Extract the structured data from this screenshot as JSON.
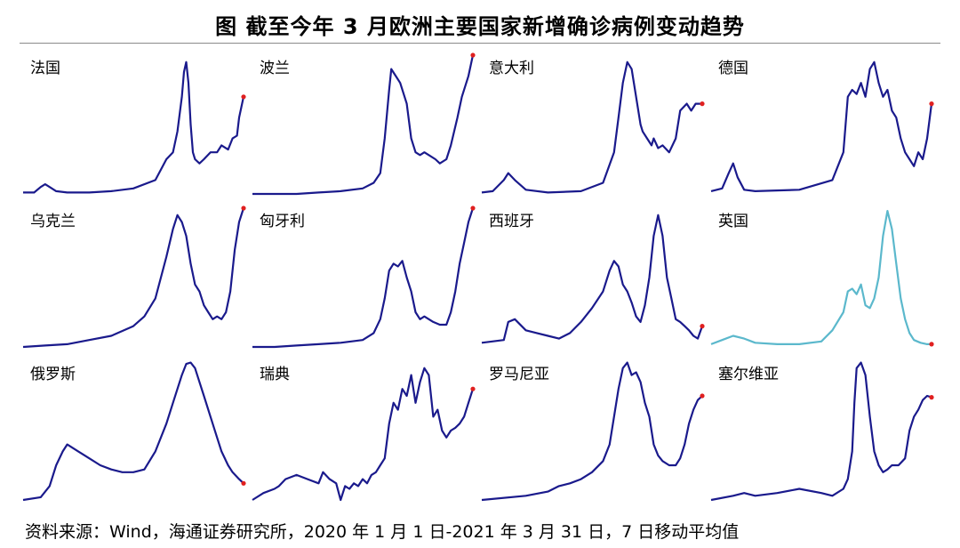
{
  "title": "图  截至今年 3 月欧洲主要国家新增确诊病例变动趋势",
  "source": "资料来源：Wind，海通证券研究所，2020 年 1 月 1 日-2021 年 3 月 31 日，7 日移动平均值",
  "colors": {
    "line": "#1a1a8c",
    "highlight": "#5bb8cc",
    "endpoint": "#e02020"
  },
  "chart_data": [
    {
      "type": "line",
      "label": "法国",
      "xlim": [
        0,
        100
      ],
      "ylim": [
        0,
        100
      ],
      "x": [
        0,
        5,
        8,
        10,
        12,
        15,
        20,
        30,
        40,
        50,
        60,
        65,
        68,
        70,
        72,
        73,
        74,
        75,
        76,
        77,
        78,
        80,
        82,
        85,
        88,
        90,
        93,
        95,
        97,
        98,
        100
      ],
      "y": [
        1,
        1,
        5,
        7,
        5,
        2,
        1,
        1,
        2,
        4,
        10,
        25,
        30,
        45,
        70,
        88,
        95,
        80,
        50,
        30,
        25,
        22,
        25,
        30,
        30,
        35,
        32,
        40,
        42,
        55,
        70
      ]
    },
    {
      "type": "line",
      "label": "波兰",
      "xlim": [
        0,
        100
      ],
      "ylim": [
        0,
        100
      ],
      "x": [
        0,
        20,
        30,
        40,
        50,
        55,
        58,
        60,
        62,
        63,
        65,
        67,
        70,
        72,
        74,
        76,
        78,
        80,
        83,
        85,
        88,
        90,
        93,
        95,
        98,
        100
      ],
      "y": [
        0,
        0,
        1,
        2,
        4,
        8,
        15,
        40,
        75,
        90,
        85,
        80,
        65,
        40,
        30,
        28,
        30,
        28,
        25,
        22,
        25,
        35,
        55,
        70,
        85,
        100
      ]
    },
    {
      "type": "line",
      "label": "意大利",
      "xlim": [
        0,
        100
      ],
      "ylim": [
        0,
        100
      ],
      "x": [
        0,
        5,
        10,
        12,
        15,
        20,
        30,
        45,
        55,
        60,
        62,
        64,
        66,
        68,
        70,
        72,
        73,
        75,
        77,
        78,
        80,
        82,
        85,
        88,
        90,
        93,
        95,
        97,
        100
      ],
      "y": [
        1,
        2,
        10,
        15,
        10,
        3,
        1,
        2,
        8,
        30,
        55,
        80,
        95,
        90,
        70,
        50,
        45,
        40,
        35,
        40,
        33,
        35,
        30,
        40,
        60,
        65,
        60,
        65,
        65
      ]
    },
    {
      "type": "line",
      "label": "德国",
      "xlim": [
        0,
        100
      ],
      "ylim": [
        0,
        100
      ],
      "x": [
        0,
        5,
        8,
        10,
        12,
        15,
        20,
        40,
        55,
        60,
        62,
        64,
        66,
        68,
        70,
        72,
        74,
        76,
        78,
        80,
        82,
        84,
        86,
        88,
        90,
        92,
        94,
        96,
        98,
        100
      ],
      "y": [
        2,
        4,
        15,
        22,
        12,
        3,
        2,
        3,
        10,
        30,
        70,
        75,
        72,
        80,
        70,
        90,
        95,
        80,
        70,
        75,
        60,
        55,
        40,
        30,
        25,
        20,
        30,
        25,
        40,
        65
      ]
    },
    {
      "type": "line",
      "label": "乌克兰",
      "xlim": [
        0,
        100
      ],
      "ylim": [
        0,
        100
      ],
      "x": [
        0,
        10,
        20,
        30,
        40,
        50,
        55,
        60,
        65,
        68,
        70,
        72,
        74,
        76,
        78,
        80,
        82,
        84,
        86,
        88,
        90,
        92,
        94,
        96,
        98,
        100
      ],
      "y": [
        0,
        1,
        2,
        5,
        8,
        15,
        22,
        35,
        65,
        85,
        95,
        90,
        80,
        60,
        45,
        40,
        30,
        25,
        20,
        22,
        20,
        25,
        40,
        70,
        90,
        100
      ]
    },
    {
      "type": "line",
      "label": "匈牙利",
      "xlim": [
        0,
        100
      ],
      "ylim": [
        0,
        100
      ],
      "x": [
        0,
        10,
        20,
        30,
        40,
        50,
        55,
        58,
        60,
        62,
        64,
        66,
        68,
        70,
        72,
        74,
        76,
        78,
        80,
        82,
        85,
        88,
        90,
        92,
        94,
        96,
        98,
        100
      ],
      "y": [
        0,
        0,
        1,
        2,
        3,
        5,
        10,
        20,
        35,
        55,
        60,
        58,
        62,
        50,
        40,
        25,
        20,
        22,
        20,
        18,
        16,
        16,
        25,
        40,
        60,
        75,
        90,
        100
      ]
    },
    {
      "type": "line",
      "label": "西班牙",
      "xlim": [
        0,
        100
      ],
      "ylim": [
        0,
        100
      ],
      "x": [
        0,
        10,
        12,
        15,
        20,
        25,
        30,
        35,
        40,
        45,
        50,
        55,
        58,
        60,
        62,
        64,
        66,
        68,
        70,
        72,
        74,
        76,
        78,
        80,
        82,
        84,
        86,
        88,
        90,
        92,
        94,
        96,
        98,
        100
      ],
      "y": [
        3,
        5,
        18,
        20,
        12,
        10,
        8,
        6,
        10,
        18,
        28,
        40,
        55,
        62,
        58,
        45,
        40,
        32,
        22,
        18,
        30,
        50,
        80,
        95,
        80,
        50,
        35,
        20,
        18,
        15,
        12,
        8,
        6,
        15
      ]
    },
    {
      "type": "line",
      "label": "英国",
      "highlight": true,
      "xlim": [
        0,
        100
      ],
      "ylim": [
        0,
        100
      ],
      "x": [
        0,
        5,
        10,
        15,
        20,
        30,
        40,
        50,
        55,
        60,
        62,
        64,
        66,
        68,
        70,
        72,
        74,
        76,
        78,
        80,
        82,
        84,
        86,
        88,
        90,
        92,
        95,
        98,
        100
      ],
      "y": [
        2,
        5,
        8,
        6,
        3,
        2,
        2,
        4,
        12,
        25,
        40,
        42,
        38,
        45,
        30,
        28,
        35,
        50,
        80,
        98,
        85,
        60,
        35,
        20,
        10,
        5,
        3,
        2,
        2
      ]
    },
    {
      "type": "line",
      "label": "俄罗斯",
      "xlim": [
        0,
        100
      ],
      "ylim": [
        0,
        100
      ],
      "x": [
        0,
        8,
        12,
        15,
        18,
        20,
        25,
        30,
        35,
        40,
        45,
        50,
        55,
        60,
        65,
        68,
        70,
        72,
        74,
        76,
        78,
        80,
        82,
        85,
        88,
        90,
        93,
        95,
        98,
        100
      ],
      "y": [
        0,
        2,
        10,
        25,
        35,
        40,
        35,
        30,
        25,
        22,
        20,
        20,
        22,
        35,
        55,
        70,
        80,
        90,
        98,
        99,
        95,
        85,
        75,
        60,
        45,
        35,
        25,
        20,
        15,
        12
      ]
    },
    {
      "type": "line",
      "label": "瑞典",
      "xlim": [
        0,
        100
      ],
      "ylim": [
        0,
        100
      ],
      "x": [
        0,
        5,
        10,
        12,
        15,
        20,
        25,
        30,
        32,
        35,
        38,
        40,
        42,
        44,
        46,
        48,
        50,
        52,
        54,
        56,
        58,
        60,
        62,
        64,
        66,
        68,
        70,
        72,
        74,
        76,
        78,
        80,
        82,
        84,
        86,
        88,
        90,
        92,
        94,
        96,
        98,
        100
      ],
      "y": [
        0,
        5,
        8,
        10,
        15,
        18,
        15,
        12,
        20,
        15,
        12,
        0,
        10,
        8,
        12,
        10,
        15,
        12,
        18,
        20,
        25,
        30,
        55,
        70,
        65,
        80,
        75,
        90,
        70,
        85,
        95,
        90,
        60,
        65,
        50,
        45,
        50,
        52,
        55,
        60,
        70,
        80
      ]
    },
    {
      "type": "line",
      "label": "罗马尼亚",
      "xlim": [
        0,
        100
      ],
      "ylim": [
        0,
        100
      ],
      "x": [
        0,
        20,
        30,
        35,
        40,
        45,
        50,
        55,
        58,
        60,
        62,
        64,
        66,
        68,
        70,
        72,
        74,
        76,
        78,
        80,
        82,
        85,
        88,
        90,
        92,
        94,
        96,
        98,
        100
      ],
      "y": [
        0,
        3,
        6,
        10,
        12,
        15,
        20,
        28,
        40,
        60,
        80,
        95,
        99,
        90,
        92,
        85,
        70,
        60,
        40,
        32,
        28,
        25,
        25,
        30,
        40,
        55,
        65,
        72,
        75
      ]
    },
    {
      "type": "line",
      "label": "塞尔维亚",
      "xlim": [
        0,
        100
      ],
      "ylim": [
        0,
        100
      ],
      "x": [
        0,
        10,
        15,
        20,
        30,
        40,
        50,
        55,
        60,
        62,
        64,
        65,
        66,
        68,
        70,
        72,
        74,
        76,
        78,
        80,
        82,
        85,
        88,
        90,
        92,
        94,
        96,
        98,
        100
      ],
      "y": [
        0,
        3,
        5,
        3,
        5,
        8,
        5,
        3,
        8,
        15,
        35,
        70,
        95,
        99,
        90,
        60,
        35,
        25,
        20,
        22,
        25,
        25,
        30,
        50,
        60,
        65,
        72,
        75,
        74
      ]
    }
  ]
}
